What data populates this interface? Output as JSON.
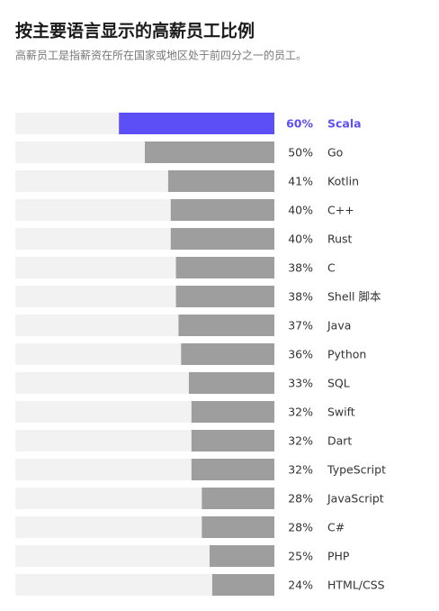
{
  "chart_data": {
    "type": "hbar",
    "title": "按主要语言显示的高薪员工比例",
    "subtitle": "高薪员工是指薪资在所在国家或地区处于前四分之一的员工。",
    "categories": [
      "Scala",
      "Go",
      "Kotlin",
      "C++",
      "Rust",
      "C",
      "Shell 脚本",
      "Java",
      "Python",
      "SQL",
      "Swift",
      "Dart",
      "TypeScript",
      "JavaScript",
      "C#",
      "PHP",
      "HTML/CSS"
    ],
    "values": [
      60,
      50,
      41,
      40,
      40,
      38,
      38,
      37,
      36,
      33,
      32,
      32,
      32,
      28,
      28,
      25,
      24
    ],
    "value_labels": [
      "60%",
      "50%",
      "41%",
      "40%",
      "40%",
      "38%",
      "38%",
      "37%",
      "36%",
      "33%",
      "32%",
      "32%",
      "32%",
      "28%",
      "28%",
      "25%",
      "24%"
    ],
    "colors": [
      "#5b4ff5",
      "#9e9e9e",
      "#9e9e9e",
      "#9e9e9e",
      "#9e9e9e",
      "#9e9e9e",
      "#9e9e9e",
      "#9e9e9e",
      "#9e9e9e",
      "#9e9e9e",
      "#9e9e9e",
      "#9e9e9e",
      "#9e9e9e",
      "#9e9e9e",
      "#9e9e9e",
      "#9e9e9e",
      "#9e9e9e"
    ],
    "xlim": [
      0,
      100
    ]
  }
}
